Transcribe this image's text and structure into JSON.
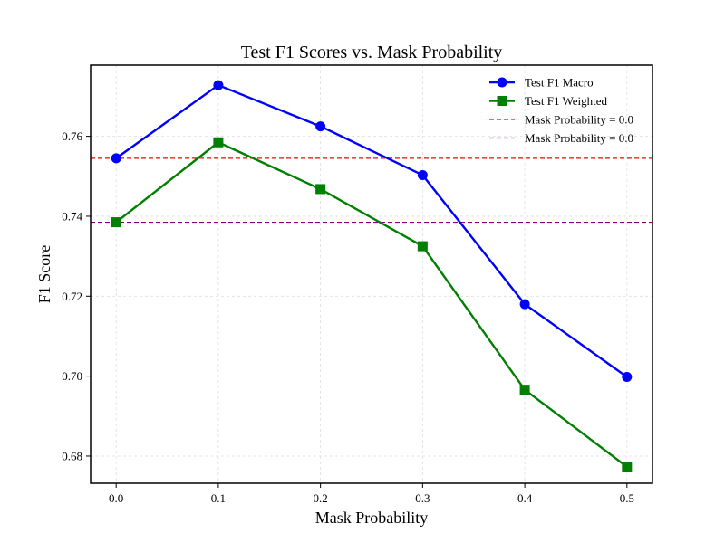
{
  "chart_data": {
    "type": "line",
    "title": "Test F1 Scores vs. Mask Probability",
    "xlabel": "Mask Probability",
    "ylabel": "F1 Score",
    "x": [
      0.0,
      0.1,
      0.2,
      0.3,
      0.4,
      0.5
    ],
    "x_ticks": [
      "0.0",
      "0.1",
      "0.2",
      "0.3",
      "0.4",
      "0.5"
    ],
    "y_ticks": [
      "0.68",
      "0.70",
      "0.72",
      "0.74",
      "0.76"
    ],
    "y_tick_values": [
      0.68,
      0.7,
      0.72,
      0.74,
      0.76
    ],
    "xlim": [
      -0.025,
      0.525
    ],
    "ylim": [
      0.6732,
      0.7778
    ],
    "grid": true,
    "legend_position": "top-right",
    "series": [
      {
        "name": "Test F1 Macro",
        "color": "#0000ff",
        "marker": "circle",
        "values": [
          0.7545,
          0.7728,
          0.7625,
          0.7503,
          0.718,
          0.6998
        ]
      },
      {
        "name": "Test F1 Weighted",
        "color": "#008000",
        "marker": "square",
        "values": [
          0.7385,
          0.7585,
          0.7468,
          0.7325,
          0.6966,
          0.6773
        ]
      }
    ],
    "reference_lines": [
      {
        "name": "Mask Probability = 0.0",
        "color": "#ff0000",
        "value": 0.7545,
        "style": "dashed"
      },
      {
        "name": "Mask Probability = 0.0",
        "color": "#800080",
        "value": 0.7385,
        "style": "dashed"
      }
    ]
  }
}
